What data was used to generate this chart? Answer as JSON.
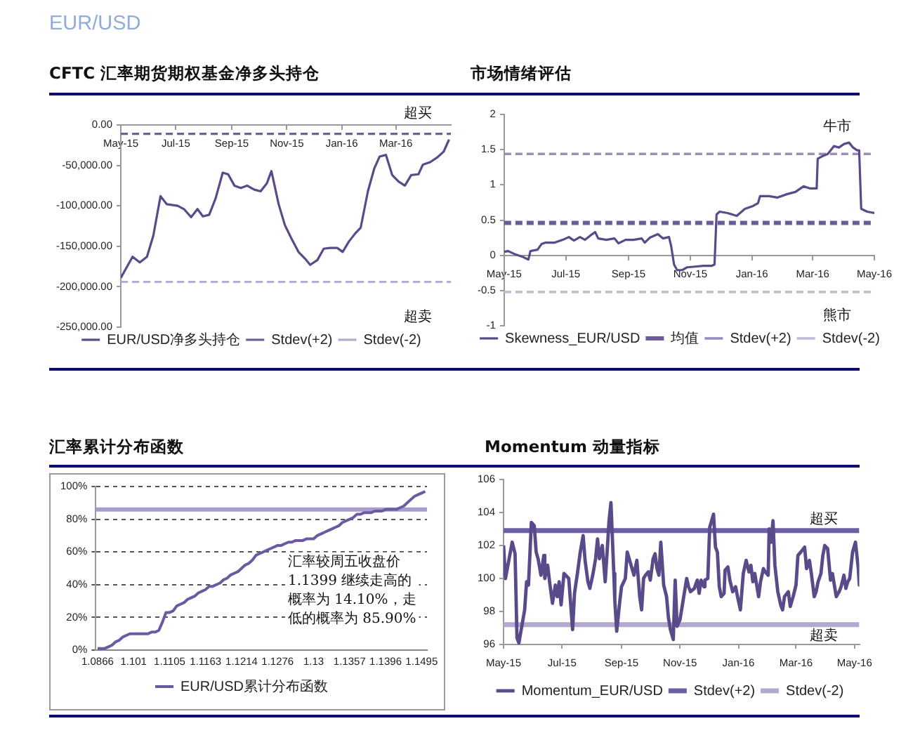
{
  "chart_data": [
    {
      "type": "other",
      "title": "EUR/USD"
    },
    {
      "type": "line",
      "title": "CFTC 汇率期货期权基金净多头持仓",
      "legend": "bottom",
      "xlim": [
        "2015-05-01",
        "2016-05-01"
      ],
      "xticks": [
        {
          "value": "2015-05-01",
          "label": "May-15"
        },
        {
          "value": "2015-07-01",
          "label": "Jul-15"
        },
        {
          "value": "2015-09-01",
          "label": "Sep-15"
        },
        {
          "value": "2015-11-01",
          "label": "Nov-15"
        },
        {
          "value": "2016-01-01",
          "label": "Jan-16"
        },
        {
          "value": "2016-03-01",
          "label": "Mar-16"
        }
      ],
      "ylim": [
        -250000,
        0
      ],
      "yticks": [
        {
          "value": -250000,
          "label": "-250,000.00"
        },
        {
          "value": -200000,
          "label": "-200,000.00"
        },
        {
          "value": -150000,
          "label": "-150,000.00"
        },
        {
          "value": -100000,
          "label": "-100,000.00"
        },
        {
          "value": -50000,
          "label": "-50,000.00"
        },
        {
          "value": 0,
          "label": "0.00"
        }
      ],
      "x": [
        "2015-05-01",
        "2015-05-14",
        "2015-05-22",
        "2015-05-30",
        "2015-06-06",
        "2015-06-14",
        "2015-06-21",
        "2015-07-03",
        "2015-07-10",
        "2015-07-18",
        "2015-07-25",
        "2015-07-31",
        "2015-08-07",
        "2015-08-14",
        "2015-08-22",
        "2015-08-28",
        "2015-09-04",
        "2015-09-11",
        "2015-09-18",
        "2015-09-26",
        "2015-10-03",
        "2015-10-10",
        "2015-10-15",
        "2015-10-23",
        "2015-10-30",
        "2015-11-06",
        "2015-11-14",
        "2015-11-21",
        "2015-11-27",
        "2015-12-05",
        "2015-12-12",
        "2015-12-19",
        "2015-12-27",
        "2016-01-02",
        "2016-01-09",
        "2016-01-16",
        "2016-01-22",
        "2016-01-30",
        "2016-02-06",
        "2016-02-12",
        "2016-02-19",
        "2016-02-26",
        "2016-03-04",
        "2016-03-11",
        "2016-03-18",
        "2016-03-26",
        "2016-03-31",
        "2016-04-08",
        "2016-04-16",
        "2016-04-23",
        "2016-04-29"
      ],
      "series": [
        {
          "name": "EUR/USD净多头持仓",
          "color": "#5b4a8a",
          "values": [
            -189000,
            -163000,
            -170000,
            -163000,
            -137000,
            -88000,
            -98000,
            -100000,
            -104000,
            -114000,
            -104000,
            -113000,
            -111000,
            -91000,
            -59000,
            -61000,
            -75000,
            -78000,
            -75000,
            -80000,
            -82000,
            -72000,
            -57000,
            -98000,
            -124000,
            -140000,
            -157000,
            -165000,
            -173000,
            -167000,
            -153000,
            -152000,
            -152000,
            -157000,
            -144000,
            -134000,
            -127000,
            -82000,
            -54000,
            -39000,
            -37000,
            -62000,
            -70000,
            -75000,
            -62000,
            -61000,
            -49000,
            -46000,
            -40000,
            -33000,
            -18000
          ]
        },
        {
          "name": "Stdev(+2)",
          "color": "#6e5fa3",
          "line_style": "dashed",
          "x": [
            "2015-05-01",
            "2016-05-01"
          ],
          "values": [
            -11000,
            -11000
          ]
        },
        {
          "name": "Stdev(-2)",
          "color": "#b5aad0",
          "line_style": "dashed",
          "x": [
            "2015-05-01",
            "2016-05-01"
          ],
          "values": [
            -194000,
            -194000
          ]
        }
      ],
      "annotations": [
        "超买",
        "超卖"
      ]
    },
    {
      "type": "line",
      "title": "市场情绪评估",
      "legend": "bottom",
      "xlim": [
        "2015-05-01",
        "2016-05-01"
      ],
      "xticks": [
        {
          "value": "2015-05-01",
          "label": "May-15"
        },
        {
          "value": "2015-07-01",
          "label": "Jul-15"
        },
        {
          "value": "2015-09-01",
          "label": "Sep-15"
        },
        {
          "value": "2015-11-01",
          "label": "Nov-15"
        },
        {
          "value": "2016-01-01",
          "label": "Jan-16"
        },
        {
          "value": "2016-03-01",
          "label": "Mar-16"
        },
        {
          "value": "2016-05-01",
          "label": "May-16"
        }
      ],
      "ylim": [
        -1,
        2
      ],
      "yticks": [
        -1,
        -0.5,
        0,
        0.5,
        1,
        1.5,
        2
      ],
      "x": [
        "2015-05-01",
        "2015-05-05",
        "2015-05-11",
        "2015-05-19",
        "2015-05-25",
        "2015-05-27",
        "2015-06-03",
        "2015-06-07",
        "2015-06-11",
        "2015-06-20",
        "2015-06-28",
        "2015-07-04",
        "2015-07-09",
        "2015-07-15",
        "2015-07-20",
        "2015-07-27",
        "2015-07-30",
        "2015-08-02",
        "2015-08-10",
        "2015-08-18",
        "2015-08-22",
        "2015-08-29",
        "2015-09-06",
        "2015-09-14",
        "2015-09-17",
        "2015-09-22",
        "2015-09-30",
        "2015-10-05",
        "2015-10-11",
        "2015-10-13",
        "2015-10-16",
        "2015-10-19",
        "2015-10-24",
        "2015-10-29",
        "2015-11-06",
        "2015-11-14",
        "2015-11-22",
        "2015-11-25",
        "2015-11-27",
        "2015-11-30",
        "2015-12-08",
        "2015-12-17",
        "2015-12-25",
        "2016-01-02",
        "2016-01-07",
        "2016-01-09",
        "2016-01-18",
        "2016-01-26",
        "2016-02-05",
        "2016-02-13",
        "2016-02-21",
        "2016-02-27",
        "2016-03-05",
        "2016-03-06",
        "2016-03-11",
        "2016-03-16",
        "2016-03-22",
        "2016-03-27",
        "2016-04-01",
        "2016-04-06",
        "2016-04-10",
        "2016-04-14",
        "2016-04-16",
        "2016-04-18",
        "2016-04-24",
        "2016-05-01"
      ],
      "series": [
        {
          "name": "Skewness_EUR/USD",
          "color": "#5b4a8a",
          "values": [
            0.05,
            0.06,
            0.02,
            -0.02,
            -0.06,
            0.06,
            0.08,
            0.16,
            0.18,
            0.18,
            0.22,
            0.26,
            0.21,
            0.26,
            0.22,
            0.3,
            0.33,
            0.24,
            0.22,
            0.24,
            0.17,
            0.22,
            0.22,
            0.24,
            0.18,
            0.25,
            0.3,
            0.24,
            0.26,
            0.14,
            -0.13,
            -0.21,
            -0.21,
            -0.17,
            -0.16,
            -0.15,
            -0.15,
            -0.13,
            0.58,
            0.62,
            0.6,
            0.56,
            0.66,
            0.7,
            0.74,
            0.84,
            0.84,
            0.82,
            0.87,
            0.9,
            0.98,
            0.95,
            0.95,
            1.37,
            1.41,
            1.44,
            1.55,
            1.53,
            1.58,
            1.6,
            1.53,
            1.49,
            1.49,
            0.66,
            0.62,
            0.6
          ]
        },
        {
          "name": "均值",
          "color": "#6b5b9e",
          "line_style": "dashed",
          "x": [
            "2015-05-01",
            "2016-05-01"
          ],
          "values": [
            0.46,
            0.46
          ]
        },
        {
          "name": "Stdev(+2)",
          "color": "#9a8cc2",
          "line_style": "dashed",
          "x": [
            "2015-05-01",
            "2016-05-01"
          ],
          "values": [
            1.44,
            1.44
          ]
        },
        {
          "name": "Stdev(-2)",
          "color": "#c4bbdb",
          "line_style": "dashed",
          "x": [
            "2015-05-01",
            "2016-05-01"
          ],
          "values": [
            -0.52,
            -0.52
          ]
        }
      ],
      "annotations": [
        "牛市",
        "熊市"
      ]
    },
    {
      "type": "line",
      "title": "汇率累计分布函数",
      "legend": "bottom",
      "grid": "y",
      "categories": [
        "1.0866",
        null,
        null,
        null,
        null,
        null,
        null,
        null,
        null,
        null,
        "1.101",
        null,
        null,
        null,
        null,
        null,
        null,
        null,
        null,
        null,
        "1.1105",
        null,
        null,
        null,
        null,
        null,
        null,
        null,
        null,
        null,
        "1.1163",
        null,
        null,
        null,
        null,
        null,
        null,
        null,
        null,
        null,
        "1.1214",
        null,
        null,
        null,
        null,
        null,
        null,
        null,
        null,
        null,
        "1.1276",
        null,
        null,
        null,
        null,
        null,
        null,
        null,
        null,
        null,
        "1.13",
        null,
        null,
        null,
        null,
        null,
        null,
        null,
        null,
        null,
        "1.1357",
        null,
        null,
        null,
        null,
        null,
        null,
        null,
        null,
        null,
        "1.1396",
        null,
        null,
        null,
        null,
        null,
        null,
        null,
        null,
        null,
        "1.1495",
        null
      ],
      "ylim": [
        0,
        100
      ],
      "yticks": [
        {
          "value": 0,
          "label": "0%"
        },
        {
          "value": 20,
          "label": "20%"
        },
        {
          "value": 40,
          "label": "40%"
        },
        {
          "value": 60,
          "label": "60%"
        },
        {
          "value": 80,
          "label": "80%"
        },
        {
          "value": 100,
          "label": "100%"
        }
      ],
      "series": [
        {
          "name": "EUR/USD累计分布函数",
          "color": "#6b5aa1",
          "values": [
            1,
            1,
            1,
            2,
            3,
            5,
            6,
            8,
            9,
            10,
            10,
            10,
            10,
            10,
            10,
            11,
            11,
            12,
            17,
            23,
            23,
            24,
            27,
            28,
            29,
            31,
            32,
            33,
            35,
            36,
            37,
            39,
            39,
            40,
            41,
            43,
            44,
            46,
            47,
            48,
            50,
            52,
            53,
            55,
            58,
            59,
            60,
            61,
            62,
            63,
            64,
            64,
            65,
            66,
            66,
            67,
            67,
            67,
            68,
            68,
            68,
            70,
            71,
            72,
            73,
            74,
            75,
            76,
            78,
            79,
            80,
            81,
            83,
            83,
            84,
            84,
            84,
            85,
            85,
            85,
            86,
            86,
            86,
            86,
            87,
            88,
            90,
            92,
            94,
            95,
            96,
            97
          ]
        }
      ],
      "ref_lines": [
        {
          "axis": "y",
          "value": 85.9,
          "color": "#a99cca"
        }
      ],
      "annotations": [
        "汇率较周五收盘价1.1399 继续走高的概率为 14.10%，走低的概率为 85.90%"
      ]
    },
    {
      "type": "line",
      "title": "Momentum 动量指标",
      "legend": "bottom",
      "xlim": [
        "2015-05-01",
        "2016-05-06"
      ],
      "xticks": [
        {
          "value": "2015-05-01",
          "label": "May-15"
        },
        {
          "value": "2015-07-01",
          "label": "Jul-15"
        },
        {
          "value": "2015-09-01",
          "label": "Sep-15"
        },
        {
          "value": "2015-11-01",
          "label": "Nov-15"
        },
        {
          "value": "2016-01-01",
          "label": "Jan-16"
        },
        {
          "value": "2016-03-01",
          "label": "Mar-16"
        },
        {
          "value": "2016-05-01",
          "label": "May-16"
        }
      ],
      "ylim": [
        96,
        106
      ],
      "yticks": [
        96,
        98,
        100,
        102,
        104,
        106
      ],
      "x": [
        "2015-05-01",
        "2015-05-03",
        "2015-05-10",
        "2015-05-13",
        "2015-05-15",
        "2015-05-17",
        "2015-05-20",
        "2015-05-23",
        "2015-05-25",
        "2015-05-27",
        "2015-05-30",
        "2015-06-02",
        "2015-06-04",
        "2015-06-06",
        "2015-06-09",
        "2015-06-12",
        "2015-06-13",
        "2015-06-16",
        "2015-06-18",
        "2015-06-21",
        "2015-06-24",
        "2015-06-26",
        "2015-06-28",
        "2015-06-30",
        "2015-07-03",
        "2015-07-08",
        "2015-07-12",
        "2015-07-14",
        "2015-07-17",
        "2015-07-20",
        "2015-07-23",
        "2015-07-25",
        "2015-07-28",
        "2015-07-30",
        "2015-08-02",
        "2015-08-05",
        "2015-08-07",
        "2015-08-09",
        "2015-08-12",
        "2015-08-15",
        "2015-08-17",
        "2015-08-19",
        "2015-08-21",
        "2015-08-24",
        "2015-08-25",
        "2015-08-27",
        "2015-08-30",
        "2015-09-01",
        "2015-09-05",
        "2015-09-07",
        "2015-09-12",
        "2015-09-14",
        "2015-09-17",
        "2015-09-20",
        "2015-09-22",
        "2015-09-24",
        "2015-09-26",
        "2015-09-29",
        "2015-10-01",
        "2015-10-04",
        "2015-10-06",
        "2015-10-08",
        "2015-10-10",
        "2015-10-12",
        "2015-10-15",
        "2015-10-18",
        "2015-10-20",
        "2015-10-22",
        "2015-10-25",
        "2015-10-27",
        "2015-10-29",
        "2015-11-01",
        "2015-11-08",
        "2015-11-10",
        "2015-11-12",
        "2015-11-16",
        "2015-11-19",
        "2015-11-21",
        "2015-11-23",
        "2015-11-26",
        "2015-11-27",
        "2015-11-30",
        "2015-12-02",
        "2015-12-06",
        "2015-12-08",
        "2015-12-10",
        "2015-12-12",
        "2015-12-14",
        "2015-12-17",
        "2015-12-18",
        "2015-12-21",
        "2015-12-23",
        "2015-12-26",
        "2015-12-29",
        "2015-12-31",
        "2016-01-03",
        "2016-01-06",
        "2016-01-09",
        "2016-01-12",
        "2016-01-14",
        "2016-01-16",
        "2016-01-18",
        "2016-01-20",
        "2016-01-22",
        "2016-01-24",
        "2016-01-27",
        "2016-01-29",
        "2016-02-01",
        "2016-02-02",
        "2016-02-04",
        "2016-02-06",
        "2016-02-08",
        "2016-02-11",
        "2016-02-14",
        "2016-02-16",
        "2016-02-18",
        "2016-02-22",
        "2016-02-24",
        "2016-02-27",
        "2016-03-01",
        "2016-03-03",
        "2016-03-06",
        "2016-03-10",
        "2016-03-12",
        "2016-03-15",
        "2016-03-17",
        "2016-03-20",
        "2016-03-22",
        "2016-03-24",
        "2016-03-27",
        "2016-03-29",
        "2016-03-31",
        "2016-04-03",
        "2016-04-06",
        "2016-04-08",
        "2016-04-12",
        "2016-04-15",
        "2016-04-17",
        "2016-04-20",
        "2016-04-22",
        "2016-04-24",
        "2016-04-26",
        "2016-04-29",
        "2016-05-02",
        "2016-05-05",
        "2016-05-06"
      ],
      "series": [
        {
          "name": "Momentum_EUR/USD",
          "color": "#5b4a8a",
          "values": [
            102.0,
            100.0,
            102.2,
            101.5,
            96.4,
            96.1,
            97.1,
            98.1,
            99.8,
            99.6,
            103.4,
            103.2,
            101.6,
            101.2,
            100.2,
            101.4,
            100.0,
            100.8,
            99.8,
            98.5,
            99.6,
            98.9,
            99.8,
            98.4,
            100.3,
            100.0,
            96.9,
            99.1,
            100.3,
            101.6,
            102.6,
            101.1,
            99.8,
            99.4,
            100.2,
            101.2,
            102.4,
            101.2,
            102.0,
            99.8,
            101.6,
            103.5,
            104.6,
            100.3,
            98.7,
            96.8,
            98.5,
            99.5,
            100.0,
            101.6,
            100.6,
            100.2,
            101.1,
            98.9,
            98.1,
            100.0,
            100.2,
            100.4,
            99.9,
            101.2,
            101.5,
            100.6,
            100.2,
            102.2,
            99.6,
            98.9,
            97.6,
            96.9,
            96.3,
            99.9,
            97.1,
            97.5,
            100.0,
            99.5,
            99.2,
            99.4,
            99.9,
            99.1,
            99.9,
            99.5,
            99.9,
            100.0,
            103.1,
            103.9,
            101.9,
            101.6,
            99.5,
            98.9,
            99.1,
            100.5,
            100.7,
            99.9,
            99.2,
            99.5,
            98.9,
            98.1,
            100.3,
            101.1,
            100.4,
            100.8,
            99.8,
            100.3,
            99.6,
            98.9,
            99.8,
            100.6,
            100.4,
            100.2,
            103.0,
            102.2,
            103.5,
            100.8,
            99.2,
            98.4,
            98.1,
            98.9,
            99.2,
            98.3,
            98.9,
            99.6,
            101.4,
            101.6,
            101.9,
            100.6,
            101.1,
            100.3,
            98.9,
            99.2,
            99.8,
            100.3,
            101.4,
            102.0,
            101.8,
            99.9,
            100.3,
            98.9,
            99.2,
            99.5,
            100.2,
            99.4,
            99.8,
            100.0,
            101.6,
            102.2,
            100.6,
            99.6
          ]
        },
        {
          "name": "Stdev(+2)",
          "color": "#6e5ea4",
          "x": [
            "2015-05-01",
            "2016-05-06"
          ],
          "values": [
            102.9,
            102.9
          ]
        },
        {
          "name": "Stdev(-2)",
          "color": "#b3a9cf",
          "x": [
            "2015-05-01",
            "2016-05-06"
          ],
          "values": [
            97.2,
            97.2
          ]
        }
      ],
      "annotations": [
        "超买",
        "超卖"
      ]
    }
  ]
}
